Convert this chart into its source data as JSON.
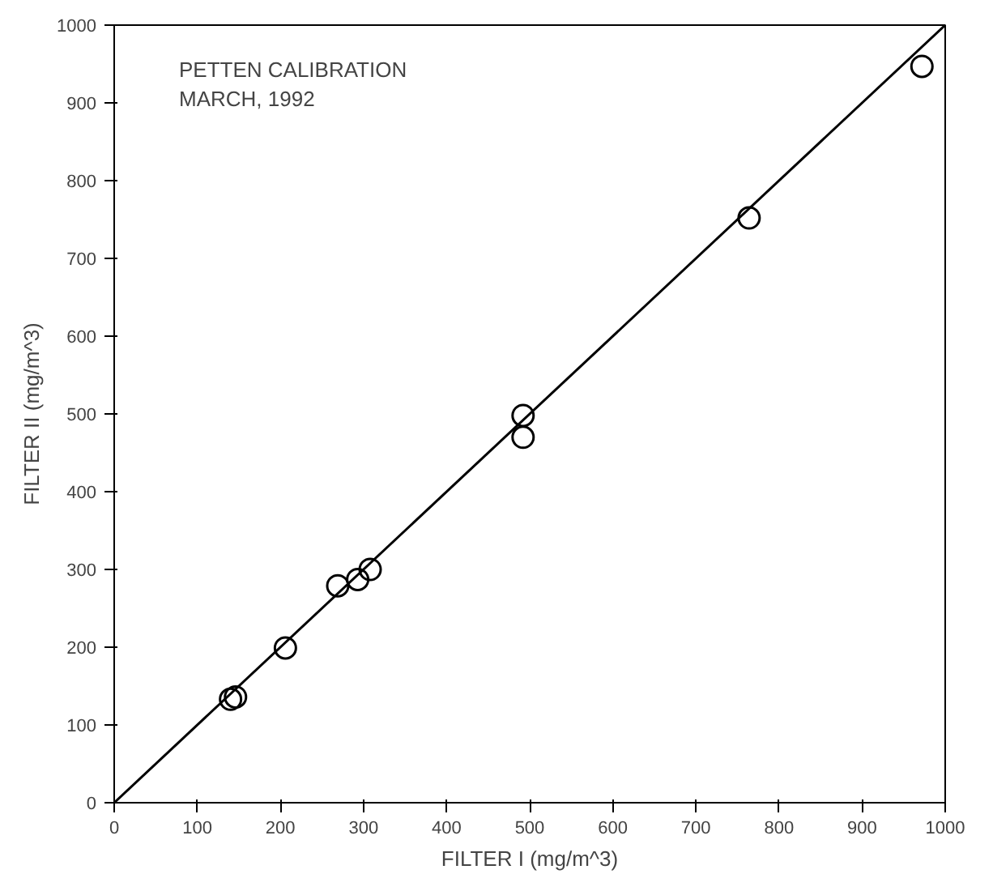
{
  "chart_data": {
    "type": "scatter",
    "title": "PETTEN CALIBRATION\nMARCH, 1992",
    "xlabel": "FILTER I (mg/m^3)",
    "ylabel": "FILTER II (mg/m^3)",
    "marker": "circle",
    "grid": false,
    "xlim": [
      0,
      1000
    ],
    "ylim": [
      0,
      1000
    ],
    "xticks": [
      0,
      100,
      200,
      300,
      400,
      500,
      600,
      700,
      800,
      900,
      1000
    ],
    "yticks": [
      0,
      100,
      200,
      300,
      400,
      500,
      600,
      700,
      800,
      900,
      1000
    ],
    "series": [
      {
        "color": "#000000",
        "x": [
          140,
          146,
          206,
          269,
          293,
          308,
          492,
          492,
          764,
          972
        ],
        "values": [
          133,
          136,
          199,
          279,
          287,
          300,
          498,
          470,
          752,
          947
        ]
      },
      {
        "type": "line",
        "color": "#000000",
        "marker": "none",
        "x": [
          0,
          1000
        ],
        "values": [
          0,
          1000
        ]
      }
    ]
  }
}
